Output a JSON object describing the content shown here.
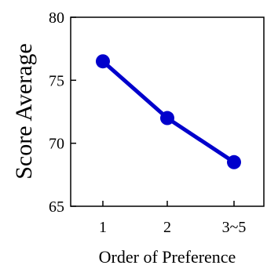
{
  "chart_data": {
    "type": "line",
    "categories": [
      "1",
      "2",
      "3~5"
    ],
    "series": [
      {
        "values": [
          76.5,
          72.0,
          68.5
        ],
        "color": "#0000cc"
      }
    ],
    "xlabel": "Order of Preference",
    "ylabel": "Score Average",
    "ylim": [
      65,
      80
    ],
    "yticks": [
      65,
      70,
      75,
      80
    ],
    "grid": false,
    "legend": "none"
  }
}
